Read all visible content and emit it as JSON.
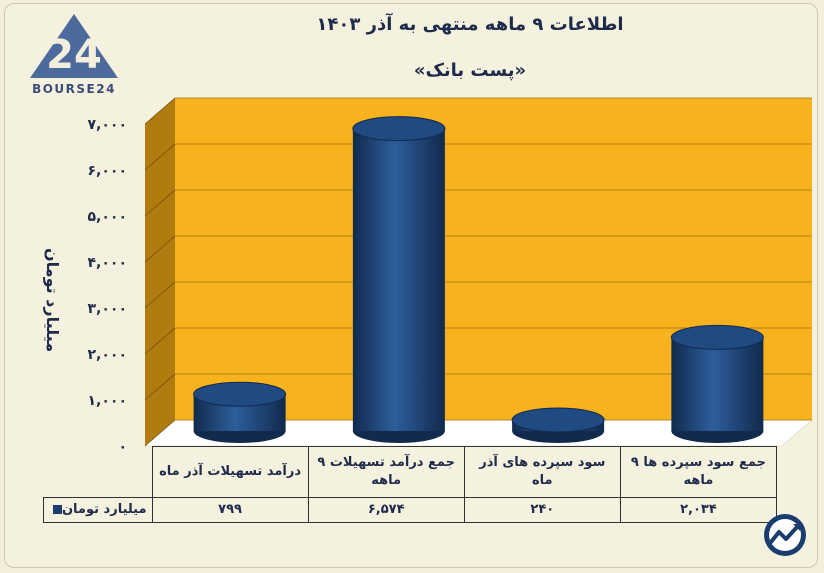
{
  "header": {
    "title": "اطلاعات ۹ ماهه منتهی به آذر ۱۴۰۳",
    "subtitle": "«پست بانک»",
    "brand": "BOURSE24"
  },
  "colors": {
    "plot_back": "#f7b21e",
    "plot_wall": "#b07c10",
    "plot_floor": "#ffffff",
    "bar_dark": "#112a4d",
    "bar_mid": "#1f4a82",
    "bar_light": "#2d5e9c",
    "text": "#1f2b4a"
  },
  "chart_data": {
    "type": "bar",
    "categories": [
      "درآمد تسهیلات آذر ماه",
      "جمع درآمد تسهیلات ۹ ماهه",
      "سود سپرده های آذر ماه",
      "جمع سود سپرده ها ۹ ماهه"
    ],
    "series": [
      {
        "name": "میلیارد تومان",
        "values": [
          799,
          6574,
          240,
          2034
        ]
      }
    ],
    "value_labels": [
      "۷۹۹",
      "۶,۵۷۴",
      "۲۴۰",
      "۲,۰۳۴"
    ],
    "ylabel": "میلیارد تومان",
    "ylim": [
      0,
      7000
    ],
    "yticks": [
      0,
      1000,
      2000,
      3000,
      4000,
      5000,
      6000,
      7000
    ],
    "ytick_labels": [
      "۰",
      "۱,۰۰۰",
      "۲,۰۰۰",
      "۳,۰۰۰",
      "۴,۰۰۰",
      "۵,۰۰۰",
      "۶,۰۰۰",
      "۷,۰۰۰"
    ],
    "grid": true,
    "legend": "data-table"
  }
}
